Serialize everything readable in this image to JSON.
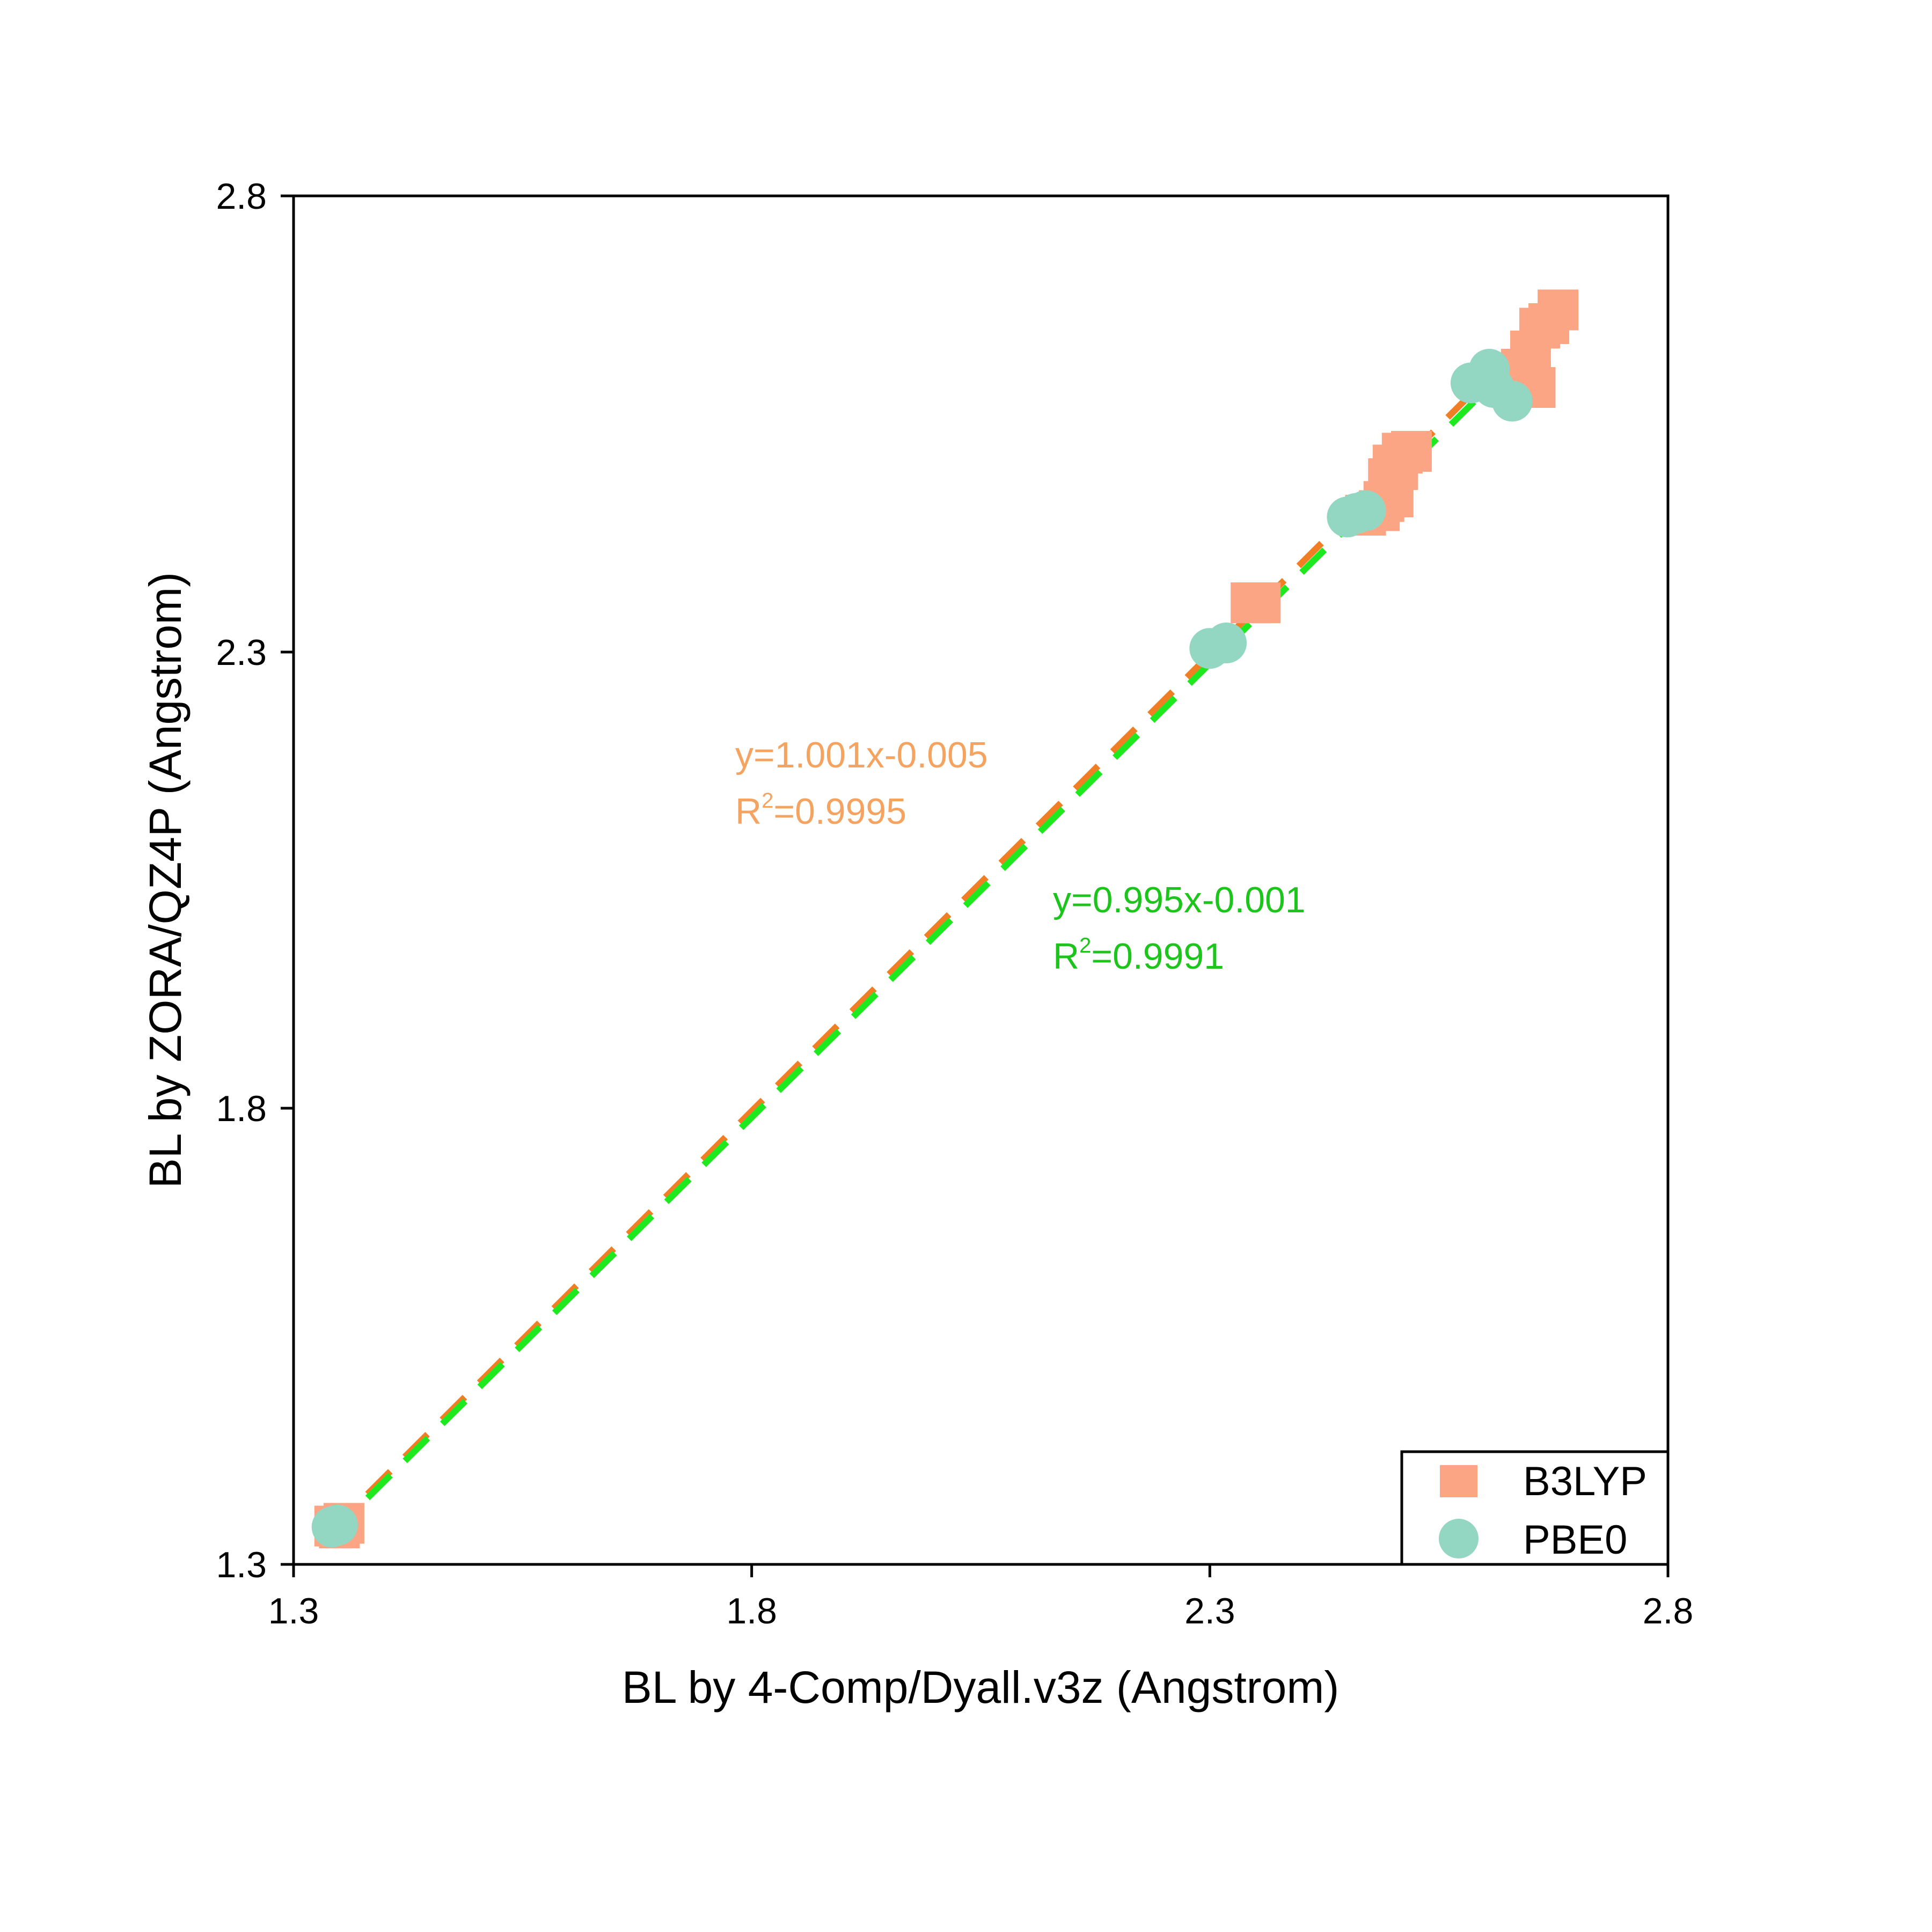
{
  "chart_data": {
    "type": "scatter",
    "title": "",
    "xlabel": "BL by 4-Comp/Dyall.v3z (Angstrom)",
    "ylabel": "BL by ZORA/QZ4P (Angstrom)",
    "xlim": [
      1.3,
      2.8
    ],
    "ylim": [
      1.3,
      2.8
    ],
    "xticks": [
      "1.3",
      "1.8",
      "2.3",
      "2.8"
    ],
    "yticks": [
      "1.3",
      "1.8",
      "2.3",
      "2.8"
    ],
    "grid": false,
    "legend_position": "bottom-right",
    "series": [
      {
        "name": "B3LYP",
        "marker": "square",
        "color": "#FBA585",
        "fit_color": "#F07E25",
        "points": [
          [
            1.345,
            1.342
          ],
          [
            1.355,
            1.345
          ],
          [
            1.35,
            1.34
          ],
          [
            2.345,
            2.354
          ],
          [
            2.355,
            2.354
          ],
          [
            2.47,
            2.45
          ],
          [
            2.485,
            2.455
          ],
          [
            2.49,
            2.465
          ],
          [
            2.5,
            2.47
          ],
          [
            2.495,
            2.49
          ],
          [
            2.505,
            2.5
          ],
          [
            2.5,
            2.505
          ],
          [
            2.51,
            2.518
          ],
          [
            2.52,
            2.52
          ],
          [
            2.65,
            2.594
          ],
          [
            2.655,
            2.59
          ],
          [
            2.64,
            2.61
          ],
          [
            2.65,
            2.63
          ],
          [
            2.66,
            2.655
          ],
          [
            2.67,
            2.66
          ],
          [
            2.68,
            2.675
          ]
        ],
        "fit": {
          "slope": 1.001,
          "intercept": -0.005,
          "x_range": [
            1.34,
            2.685
          ]
        },
        "equation": "y=1.001x-0.005",
        "r2_prefix": "R",
        "r2_exp": "2",
        "r2_value": "=0.9995"
      },
      {
        "name": "PBE0",
        "marker": "circle",
        "color": "#93D6C1",
        "fit_color": "#1EE81E",
        "points": [
          [
            1.342,
            1.341
          ],
          [
            1.348,
            1.343
          ],
          [
            2.3,
            2.304
          ],
          [
            2.318,
            2.31
          ],
          [
            2.45,
            2.448
          ],
          [
            2.46,
            2.452
          ],
          [
            2.47,
            2.455
          ],
          [
            2.585,
            2.595
          ],
          [
            2.605,
            2.61
          ],
          [
            2.61,
            2.59
          ],
          [
            2.63,
            2.575
          ]
        ],
        "fit": {
          "slope": 0.995,
          "intercept": -0.001,
          "x_range": [
            1.34,
            2.685
          ]
        },
        "equation": "y=0.995x-0.001",
        "r2_prefix": "R",
        "r2_exp": "2",
        "r2_value": "=0.9991"
      }
    ]
  }
}
